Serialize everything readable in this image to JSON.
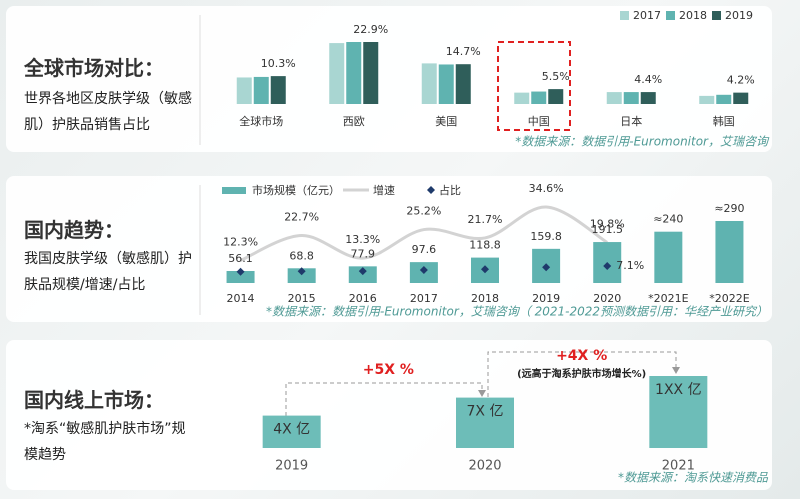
{
  "panels": [
    {
      "heading": "全球市场对比：",
      "description": "世界各地区皮肤学级（敏感肌）护肤品销售占比"
    },
    {
      "heading": "国内趋势：",
      "description": "我国皮肤学级（敏感肌）护肤品规模/增速/占比"
    },
    {
      "heading": "国内线上市场：",
      "description": "*淘系“敏感肌护肤市场”规模趋势"
    }
  ],
  "chart_data": [
    {
      "type": "bar",
      "categories": [
        "全球市场",
        "西欧",
        "美国",
        "中国",
        "日本",
        "韩国"
      ],
      "series": [
        {
          "name": "2017",
          "color": "#a9d6d2",
          "values": [
            9.8,
            22.5,
            15.0,
            4.2,
            4.4,
            3.0
          ]
        },
        {
          "name": "2018",
          "color": "#5fb3b0",
          "values": [
            10.0,
            22.9,
            14.6,
            4.6,
            4.4,
            3.4
          ]
        },
        {
          "name": "2019",
          "color": "#2f5e5a",
          "values": [
            10.3,
            22.9,
            14.7,
            5.5,
            4.4,
            4.2
          ],
          "value_labels": [
            "10.3%",
            "22.9%",
            "14.7%",
            "5.5%",
            "4.4%",
            "4.2%"
          ]
        }
      ],
      "source": "*数据来源：数据引用-Euromonitor，艾瑞咨询"
    },
    {
      "type": "combo",
      "categories": [
        "2014",
        "2015",
        "2016",
        "2017",
        "2018",
        "2019",
        "2020",
        "*2021E",
        "*2022E"
      ],
      "series": [
        {
          "name": "市场规模（亿元）",
          "type": "bar",
          "color": "#5fb3b0",
          "values": [
            56.1,
            68.8,
            77.9,
            97.6,
            118.8,
            159.8,
            191.5,
            240,
            290
          ],
          "value_labels": [
            "56.1",
            "68.8",
            "77.9",
            "97.6",
            "118.8",
            "159.8",
            "191.5",
            "≈240",
            "≈290"
          ]
        },
        {
          "name": "增速",
          "type": "line",
          "color": "#d3d3d3",
          "values": [
            12.3,
            22.7,
            13.3,
            25.2,
            21.7,
            34.6,
            19.8,
            null,
            null
          ],
          "value_labels": [
            "12.3%",
            "22.7%",
            "13.3%",
            "25.2%",
            "21.7%",
            "34.6%",
            "19.8%",
            null,
            null
          ]
        },
        {
          "name": "占比",
          "type": "scatter",
          "color": "#1f3a6b",
          "values": [
            3.0,
            3.4,
            3.5,
            4.3,
            4.8,
            6.2,
            7.1,
            null,
            null
          ],
          "value_labels": [
            null,
            null,
            null,
            null,
            null,
            null,
            "7.1%",
            null,
            null
          ]
        }
      ],
      "source": "*数据来源：数据引用-Euromonitor，艾瑞咨询（ 2021-2022预测数据引用：华经产业研究）"
    },
    {
      "type": "bar",
      "categories": [
        "2019",
        "2020",
        "2021"
      ],
      "color": "#6dbdb8",
      "values": [
        45,
        70,
        100
      ],
      "value_labels": [
        "4X 亿",
        "7X 亿",
        "1XX 亿"
      ],
      "annotations": [
        "+5X %",
        "+4X %",
        "(远高于淘系护肤市场增长%)"
      ],
      "source": "*数据来源：淘系快速消费品"
    }
  ]
}
